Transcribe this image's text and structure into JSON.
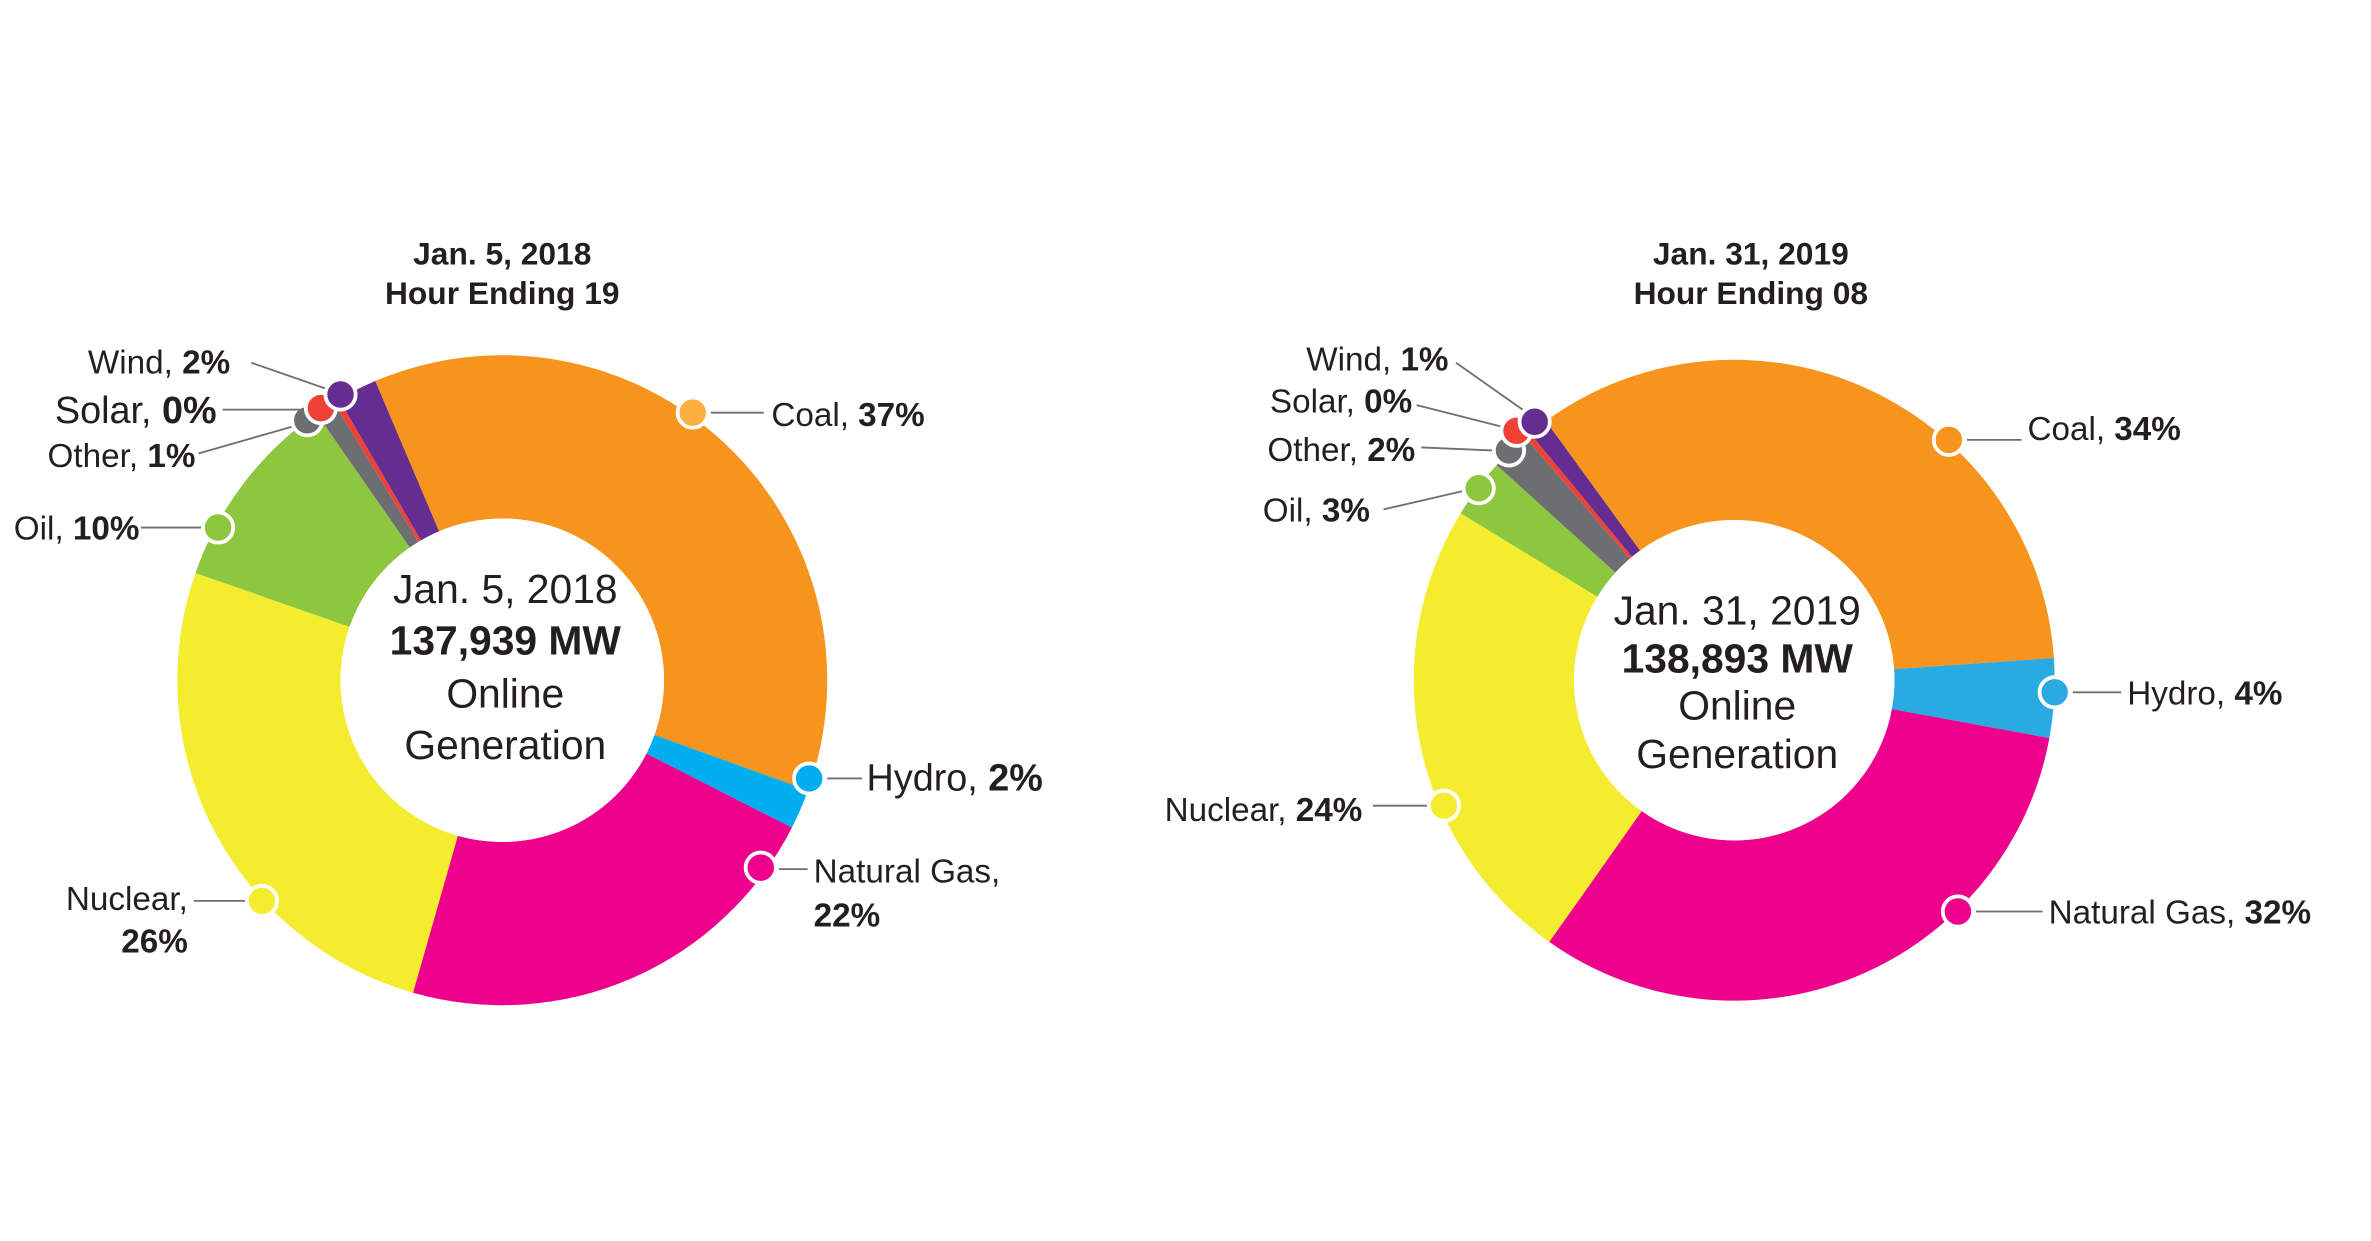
{
  "chart_data": [
    {
      "type": "pie",
      "donut": true,
      "title": [
        "Jan. 5, 2018",
        "Hour Ending 19"
      ],
      "center_text": [
        "Jan. 5, 2018",
        "137,939 MW",
        "Online",
        "Generation"
      ],
      "slices": [
        {
          "name": "Coal",
          "value": 37,
          "label": "37%",
          "color": "#F7941D",
          "marker_color": "#FBB040"
        },
        {
          "name": "Hydro",
          "value": 2,
          "label": "2%",
          "color": "#00AEEF"
        },
        {
          "name": "Natural Gas",
          "value": 22,
          "label": "22%",
          "color": "#EC008C"
        },
        {
          "name": "Nuclear",
          "value": 26,
          "label": "26%",
          "color": "#F4EC2F"
        },
        {
          "name": "Oil",
          "value": 10,
          "label": "10%",
          "color": "#8DC63F"
        },
        {
          "name": "Other",
          "value": 1,
          "label": "1%",
          "color": "#6D6E71"
        },
        {
          "name": "Solar",
          "value": 0,
          "label": "0%",
          "color": "#EF4136"
        },
        {
          "name": "Wind",
          "value": 2,
          "label": "2%",
          "color": "#662D91"
        }
      ]
    },
    {
      "type": "pie",
      "donut": true,
      "title": [
        "Jan. 31, 2019",
        "Hour Ending 08"
      ],
      "center_text": [
        "Jan. 31, 2019",
        "138,893 MW",
        "Online",
        "Generation"
      ],
      "slices": [
        {
          "name": "Coal",
          "value": 34,
          "label": "34%",
          "color": "#F7941D"
        },
        {
          "name": "Hydro",
          "value": 4,
          "label": "4%",
          "color": "#29ABE2"
        },
        {
          "name": "Natural Gas",
          "value": 32,
          "label": "32%",
          "color": "#EC008C"
        },
        {
          "name": "Nuclear",
          "value": 24,
          "label": "24%",
          "color": "#F4EC2F"
        },
        {
          "name": "Oil",
          "value": 3,
          "label": "3%",
          "color": "#8DC63F"
        },
        {
          "name": "Other",
          "value": 2,
          "label": "2%",
          "color": "#6D6E71"
        },
        {
          "name": "Solar",
          "value": 0,
          "label": "0%",
          "color": "#EF4136"
        },
        {
          "name": "Wind",
          "value": 1,
          "label": "1%",
          "color": "#662D91"
        }
      ]
    }
  ]
}
